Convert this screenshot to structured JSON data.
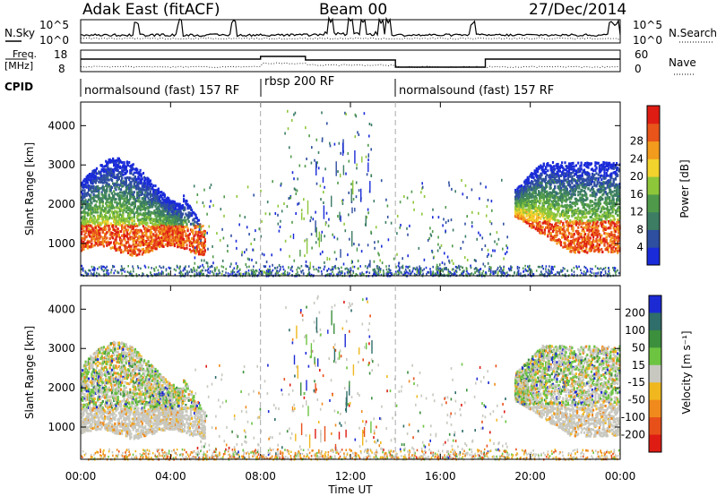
{
  "header": {
    "station": "Adak East (fitACF)",
    "beam": "Beam 00",
    "date": "27/Dec/2014"
  },
  "side_labels": {
    "nsky": "N.Sky",
    "nsearch": "N.Search",
    "freq": "Freq.",
    "freq_unit": "[MHz]",
    "nave": "Nave",
    "cpid": "CPID"
  },
  "noise_axis": {
    "left_top": "10^5",
    "left_bottom": "10^0",
    "right_top": "10^5",
    "right_bottom": "10^0"
  },
  "freq_axis": {
    "left_top": "18",
    "left_bottom": "8",
    "right_top": "60",
    "right_bottom": "0"
  },
  "cpid_segments": [
    {
      "label": "normalsound (fast) 157 RF",
      "start_hour": 0
    },
    {
      "label": "rbsp 200 RF",
      "start_hour": 8
    },
    {
      "label": "normalsound (fast) 157 RF",
      "start_hour": 14
    }
  ],
  "chart_data": [
    {
      "type": "heatmap",
      "parameter": "Power",
      "ylabel": "Slant Range [km]",
      "xlabel": "",
      "xlim": [
        0,
        24
      ],
      "ylim": [
        180,
        4600
      ],
      "yticks": [
        "1000",
        "2000",
        "3000",
        "4000"
      ],
      "ytick_values": [
        1000,
        2000,
        3000,
        4000
      ],
      "colorbar": {
        "label": "Power [dB]",
        "ticks": [
          "4",
          "8",
          "12",
          "16",
          "20",
          "24",
          "28"
        ],
        "colors": [
          "#1a2bd9",
          "#2e4ea0",
          "#3c7d64",
          "#4f9a4a",
          "#8ec63a",
          "#f2d22c",
          "#f29b1d",
          "#e8541a",
          "#de1c14"
        ]
      }
    },
    {
      "type": "heatmap",
      "parameter": "Velocity",
      "ylabel": "Slant Range [km]",
      "xlabel": "Time UT",
      "xlim": [
        0,
        24
      ],
      "ylim": [
        180,
        4600
      ],
      "yticks": [
        "1000",
        "2000",
        "3000",
        "4000"
      ],
      "ytick_values": [
        1000,
        2000,
        3000,
        4000
      ],
      "xticks": [
        "00:00",
        "04:00",
        "08:00",
        "12:00",
        "16:00",
        "20:00",
        "00:00"
      ],
      "colorbar": {
        "label": "Velocity [m s⁻¹]",
        "ticks": [
          "200",
          "100",
          "50",
          "15",
          "-15",
          "-50",
          "-100",
          "-200"
        ],
        "colors": [
          "#1c2ad4",
          "#2f6e6a",
          "#3b8f3d",
          "#6cc441",
          "#c8c8c0",
          "#f0b81e",
          "#f08a1c",
          "#e8501a",
          "#de1c14"
        ]
      }
    }
  ]
}
